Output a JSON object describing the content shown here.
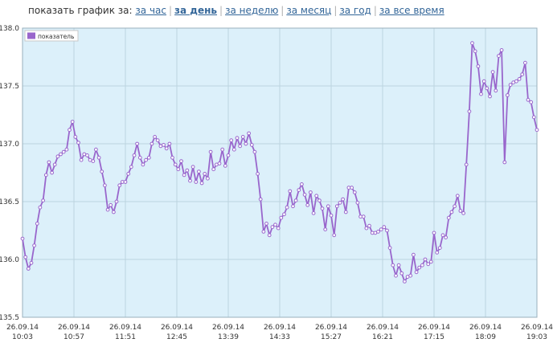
{
  "period_selector": {
    "label": "показать график за:",
    "options": [
      {
        "label": "за час",
        "active": false
      },
      {
        "label": "за день",
        "active": true
      },
      {
        "label": "за неделю",
        "active": false
      },
      {
        "label": "за месяц",
        "active": false
      },
      {
        "label": "за год",
        "active": false
      },
      {
        "label": "за все время",
        "active": false
      }
    ]
  },
  "colors": {
    "line": "#9966cc",
    "plot_bg": "#dcf0fa",
    "grid": "#bcd4e0",
    "tick_text": "#333333"
  },
  "chart_data": {
    "type": "line",
    "title": "",
    "xlabel": "",
    "ylabel": "",
    "ylim": [
      135.5,
      138.0
    ],
    "yticks": [
      "135.5",
      "136.0",
      "136.5",
      "137.0",
      "137.5",
      "138.0"
    ],
    "x_ticks": [
      {
        "date": "26.09.14",
        "time": "10:03"
      },
      {
        "date": "26.09.14",
        "time": "10:57"
      },
      {
        "date": "26.09.14",
        "time": "11:51"
      },
      {
        "date": "26.09.14",
        "time": "12:45"
      },
      {
        "date": "26.09.14",
        "time": "13:39"
      },
      {
        "date": "26.09.14",
        "time": "14:33"
      },
      {
        "date": "26.09.14",
        "time": "15:27"
      },
      {
        "date": "26.09.14",
        "time": "16:21"
      },
      {
        "date": "26.09.14",
        "time": "17:15"
      },
      {
        "date": "26.09.14",
        "time": "18:09"
      },
      {
        "date": "26.09.14",
        "time": "19:03"
      }
    ],
    "grid": true,
    "legend_position": "top-left",
    "series": [
      {
        "name": "показатель",
        "values": [
          136.18,
          136.02,
          135.92,
          135.97,
          136.12,
          136.31,
          136.45,
          136.51,
          136.73,
          136.84,
          136.75,
          136.82,
          136.89,
          136.91,
          136.93,
          136.95,
          137.12,
          137.19,
          137.06,
          137.01,
          136.86,
          136.91,
          136.9,
          136.86,
          136.85,
          136.95,
          136.88,
          136.76,
          136.64,
          136.43,
          136.47,
          136.41,
          136.5,
          136.64,
          136.67,
          136.67,
          136.74,
          136.8,
          136.9,
          137.0,
          136.88,
          136.82,
          136.86,
          136.88,
          137.0,
          137.06,
          137.03,
          136.98,
          136.99,
          136.96,
          137.0,
          136.88,
          136.82,
          136.78,
          136.85,
          136.73,
          136.77,
          136.68,
          136.8,
          136.67,
          136.76,
          136.66,
          136.74,
          136.7,
          136.93,
          136.78,
          136.82,
          136.83,
          136.95,
          136.81,
          136.9,
          137.03,
          136.95,
          137.05,
          136.98,
          137.06,
          137.0,
          137.09,
          136.99,
          136.93,
          136.74,
          136.52,
          136.24,
          136.31,
          136.21,
          136.28,
          136.3,
          136.27,
          136.36,
          136.39,
          136.45,
          136.59,
          136.46,
          136.51,
          136.6,
          136.65,
          136.56,
          136.47,
          136.58,
          136.4,
          136.55,
          136.51,
          136.44,
          136.26,
          136.46,
          136.38,
          136.21,
          136.46,
          136.49,
          136.52,
          136.41,
          136.62,
          136.62,
          136.58,
          136.49,
          136.37,
          136.37,
          136.27,
          136.29,
          136.23,
          136.23,
          136.24,
          136.26,
          136.28,
          136.25,
          136.1,
          135.95,
          135.86,
          135.95,
          135.88,
          135.81,
          135.85,
          135.86,
          136.04,
          135.89,
          135.93,
          135.95,
          136.0,
          135.96,
          135.98,
          136.23,
          136.06,
          136.1,
          136.21,
          136.19,
          136.36,
          136.41,
          136.46,
          136.55,
          136.42,
          136.4,
          136.82,
          137.28,
          137.87,
          137.8,
          137.67,
          137.43,
          137.54,
          137.48,
          137.41,
          137.62,
          137.46,
          137.76,
          137.81,
          136.84,
          137.42,
          137.51,
          137.53,
          137.54,
          137.56,
          137.6,
          137.7,
          137.38,
          137.36,
          137.23,
          137.12
        ]
      }
    ]
  }
}
